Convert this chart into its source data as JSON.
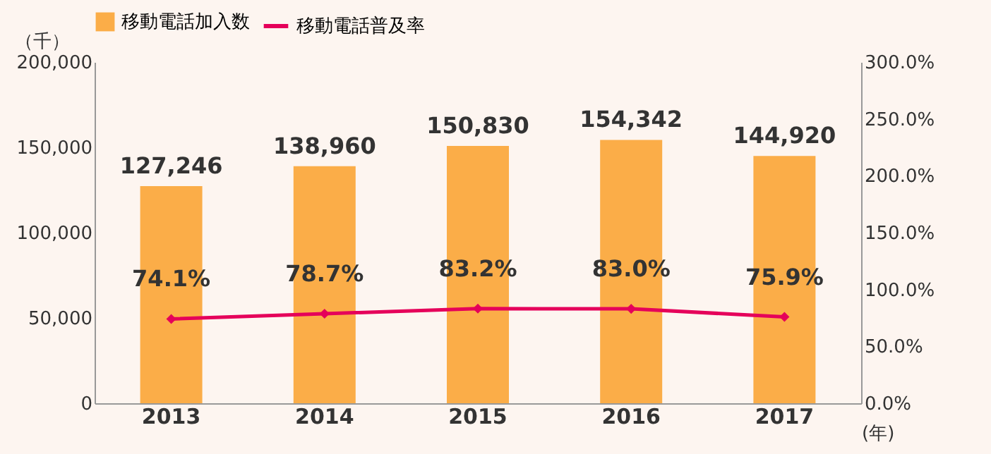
{
  "chart_data": {
    "type": "bar",
    "categories": [
      "2013",
      "2014",
      "2015",
      "2016",
      "2017"
    ],
    "series": [
      {
        "name": "移動電話加入数",
        "color": "#fbad48",
        "values": [
          127246,
          138960,
          150830,
          154342,
          144920
        ],
        "value_labels": [
          "127,246",
          "138,960",
          "150,830",
          "154,342",
          "144,920"
        ]
      },
      {
        "name": "移動電話普及率",
        "type": "line",
        "axis": "y2",
        "color": "#e5005a",
        "marker": "diamond",
        "values": [
          74.1,
          78.7,
          83.2,
          83.0,
          75.9
        ],
        "value_labels": [
          "74.1%",
          "78.7%",
          "83.2%",
          "83.0%",
          "75.9%"
        ]
      }
    ],
    "ylabel": "（千）",
    "xlabel": "(年)",
    "ylim": [
      0,
      200000
    ],
    "yticks": [
      {
        "value": 0,
        "label": "0"
      },
      {
        "value": 50000,
        "label": "50,000"
      },
      {
        "value": 100000,
        "label": "100,000"
      },
      {
        "value": 150000,
        "label": "150,000"
      },
      {
        "value": 200000,
        "label": "200,000"
      }
    ],
    "y2lim": [
      0,
      300
    ],
    "y2ticks": [
      {
        "value": 0,
        "label": "0.0%"
      },
      {
        "value": 50,
        "label": "50.0%"
      },
      {
        "value": 100,
        "label": "100.0%"
      },
      {
        "value": 150,
        "label": "150.0%"
      },
      {
        "value": 200,
        "label": "200.0%"
      },
      {
        "value": 250,
        "label": "250.0%"
      },
      {
        "value": 300,
        "label": "300.0%"
      }
    ],
    "grid": false,
    "legend": "top"
  }
}
